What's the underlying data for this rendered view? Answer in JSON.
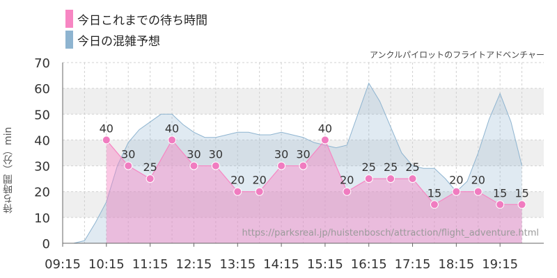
{
  "legend": [
    {
      "label": "今日これまでの待ち時間",
      "color": "#f786c3"
    },
    {
      "label": "今日の混雑予想",
      "color": "#8eb4d0"
    }
  ],
  "attraction_name": "アンクルパイロットのフライトアドベンチャー",
  "watermark": "https://parksreal.jp/huistenbosch/attraction/flight_adventure.html",
  "chart_data": {
    "type": "area",
    "ylabel": "待ち時間（分）min",
    "ylim": [
      0,
      70
    ],
    "yticks": [
      0,
      10,
      20,
      30,
      40,
      50,
      60,
      70
    ],
    "x_range": [
      "09:15",
      "20:15"
    ],
    "x_ticks": [
      "09:15",
      "10:15",
      "11:15",
      "12:15",
      "13:15",
      "14:15",
      "15:15",
      "16:15",
      "17:15",
      "18:15",
      "19:15"
    ],
    "grid": true,
    "series": [
      {
        "name": "今日これまでの待ち時間",
        "color": "#f786c3",
        "points": [
          [
            "10:15",
            40
          ],
          [
            "10:45",
            30
          ],
          [
            "11:15",
            25
          ],
          [
            "11:45",
            40
          ],
          [
            "12:15",
            30
          ],
          [
            "12:45",
            30
          ],
          [
            "13:15",
            20
          ],
          [
            "13:45",
            20
          ],
          [
            "14:15",
            30
          ],
          [
            "14:45",
            30
          ],
          [
            "15:15",
            40
          ],
          [
            "15:45",
            20
          ],
          [
            "16:15",
            25
          ],
          [
            "16:45",
            25
          ],
          [
            "17:15",
            25
          ],
          [
            "17:45",
            15
          ],
          [
            "18:15",
            20
          ],
          [
            "18:45",
            20
          ],
          [
            "19:15",
            15
          ],
          [
            "19:45",
            15
          ]
        ]
      },
      {
        "name": "今日の混雑予想",
        "color": "#8eb4d0",
        "points": [
          [
            "09:15",
            0
          ],
          [
            "09:30",
            0
          ],
          [
            "09:45",
            1
          ],
          [
            "10:00",
            8
          ],
          [
            "10:15",
            16
          ],
          [
            "10:30",
            30
          ],
          [
            "10:45",
            39
          ],
          [
            "11:00",
            44
          ],
          [
            "11:15",
            47
          ],
          [
            "11:30",
            50
          ],
          [
            "11:45",
            50
          ],
          [
            "12:00",
            46
          ],
          [
            "12:15",
            43
          ],
          [
            "12:30",
            41
          ],
          [
            "12:45",
            41
          ],
          [
            "13:00",
            42
          ],
          [
            "13:15",
            43
          ],
          [
            "13:30",
            43
          ],
          [
            "13:45",
            42
          ],
          [
            "14:00",
            42
          ],
          [
            "14:15",
            43
          ],
          [
            "14:30",
            42
          ],
          [
            "14:45",
            41
          ],
          [
            "15:00",
            39
          ],
          [
            "15:15",
            38
          ],
          [
            "15:30",
            37
          ],
          [
            "15:45",
            38
          ],
          [
            "16:00",
            50
          ],
          [
            "16:15",
            62
          ],
          [
            "16:30",
            55
          ],
          [
            "16:45",
            45
          ],
          [
            "17:00",
            35
          ],
          [
            "17:15",
            30
          ],
          [
            "17:30",
            29
          ],
          [
            "17:45",
            29
          ],
          [
            "18:00",
            25
          ],
          [
            "18:15",
            20
          ],
          [
            "18:30",
            24
          ],
          [
            "18:45",
            35
          ],
          [
            "19:00",
            48
          ],
          [
            "19:15",
            58
          ],
          [
            "19:30",
            47
          ],
          [
            "19:45",
            30
          ]
        ]
      }
    ]
  }
}
